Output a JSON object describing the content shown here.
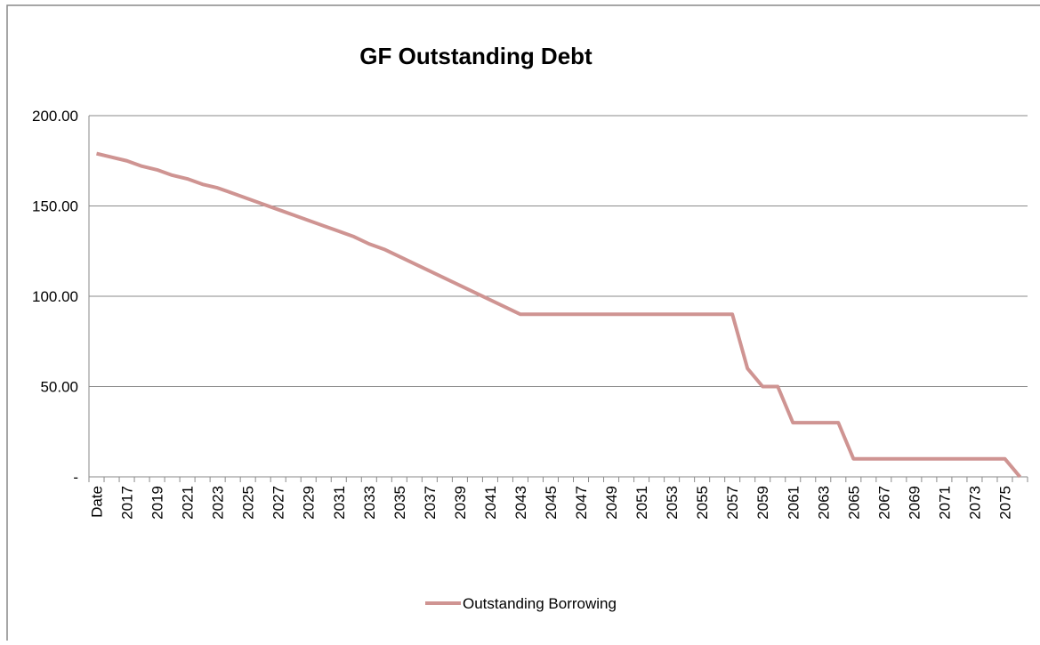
{
  "chart_data": {
    "type": "line",
    "title": "GF Outstanding Debt",
    "categories": [
      "Date",
      null,
      "2017",
      null,
      "2019",
      null,
      "2021",
      null,
      "2023",
      null,
      "2025",
      null,
      "2027",
      null,
      "2029",
      null,
      "2031",
      null,
      "2033",
      null,
      "2035",
      null,
      "2037",
      null,
      "2039",
      null,
      "2041",
      null,
      "2043",
      null,
      "2045",
      null,
      "2047",
      null,
      "2049",
      null,
      "2051",
      null,
      "2053",
      null,
      "2055",
      null,
      "2057",
      null,
      "2059",
      null,
      "2061",
      null,
      "2063",
      null,
      "2065",
      null,
      "2067",
      null,
      "2069",
      null,
      "2071",
      null,
      "2073",
      null,
      "2075",
      null
    ],
    "series": [
      {
        "name": "Outstanding Borrowing",
        "color": "#cf9492",
        "values": [
          179,
          177,
          175,
          172,
          170,
          167,
          165,
          162,
          160,
          157,
          154,
          151,
          148,
          145,
          142,
          139,
          136,
          133,
          129,
          126,
          122,
          118,
          114,
          110,
          106,
          102,
          98,
          94,
          90,
          90,
          90,
          90,
          90,
          90,
          90,
          90,
          90,
          90,
          90,
          90,
          90,
          90,
          90,
          60,
          50,
          50,
          30,
          30,
          30,
          30,
          10,
          10,
          10,
          10,
          10,
          10,
          10,
          10,
          10,
          10,
          10,
          0
        ]
      }
    ],
    "ylim": [
      0,
      200
    ],
    "yticks": [
      {
        "value": 0,
        "label": "-"
      },
      {
        "value": 50,
        "label": "50.00"
      },
      {
        "value": 100,
        "label": "100.00"
      },
      {
        "value": 150,
        "label": "150.00"
      },
      {
        "value": 200,
        "label": "200.00"
      }
    ],
    "grid": true
  }
}
